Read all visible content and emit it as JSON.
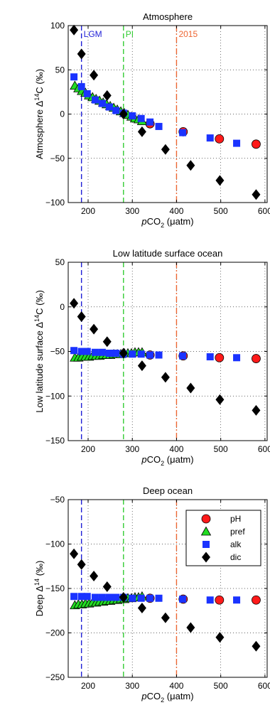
{
  "chart_data": [
    {
      "type": "scatter",
      "title": "Atmosphere",
      "ylabel": {
        "pre": "Atmosphere Δ",
        "sup": "14",
        "post": "C (‰)"
      },
      "xlabel": {
        "italic": "p",
        "main": "CO",
        "sub": "2",
        "post": " (μatm)"
      },
      "xlim": [
        155,
        605
      ],
      "ylim": [
        -100,
        100
      ],
      "xticks": [
        200,
        300,
        400,
        500,
        600
      ],
      "yticks": [
        -100,
        -50,
        0,
        50,
        100
      ],
      "grid": true,
      "reference_lines": [
        {
          "x": 185,
          "label": "LGM",
          "color": "#1f1fd6",
          "style": "dashed"
        },
        {
          "x": 280,
          "label": "PI",
          "color": "#33cc33",
          "style": "dashed"
        },
        {
          "x": 400,
          "label": "2015",
          "color": "#ee6633",
          "style": "dashdot"
        }
      ],
      "series": [
        {
          "name": "pH",
          "x": [
            340,
            415,
            497,
            580
          ],
          "y": [
            -11,
            -20,
            -28,
            -34
          ]
        },
        {
          "name": "pref",
          "x": [
            170,
            178,
            186,
            194,
            202,
            210,
            218,
            226,
            234,
            242,
            250,
            258,
            266,
            274,
            282,
            290,
            298,
            306,
            314,
            322
          ],
          "y": [
            32,
            29,
            26,
            24,
            21,
            19,
            17,
            15,
            13,
            11,
            9,
            7,
            5,
            3,
            1,
            -1,
            -3,
            -5,
            -6,
            -8
          ]
        },
        {
          "name": "alk",
          "x": [
            168,
            185,
            198,
            216,
            232,
            248,
            263,
            280,
            300,
            320,
            340,
            360,
            414,
            476,
            536
          ],
          "y": [
            42,
            31,
            23,
            16,
            12,
            8,
            4,
            1,
            -2,
            -5,
            -9,
            -14,
            -21,
            -27,
            -33
          ]
        },
        {
          "name": "dic",
          "x": [
            168,
            185,
            213,
            243,
            280,
            322,
            375,
            432,
            498,
            580
          ],
          "y": [
            95,
            68,
            44,
            21,
            0,
            -20,
            -40,
            -58,
            -75,
            -91
          ]
        }
      ]
    },
    {
      "type": "scatter",
      "title": "Low latitude surface ocean",
      "ylabel": {
        "pre": "Low latitude surface Δ",
        "sup": "14",
        "post": "C (‰)"
      },
      "xlabel": {
        "italic": "p",
        "main": "CO",
        "sub": "2",
        "post": " (μatm)"
      },
      "xlim": [
        155,
        605
      ],
      "ylim": [
        -150,
        50
      ],
      "xticks": [
        200,
        300,
        400,
        500,
        600
      ],
      "yticks": [
        -150,
        -100,
        -50,
        0,
        50
      ],
      "grid": true,
      "reference_lines": [
        {
          "x": 185,
          "label": "",
          "color": "#1f1fd6",
          "style": "dashed"
        },
        {
          "x": 280,
          "label": "",
          "color": "#33cc33",
          "style": "dashed"
        },
        {
          "x": 400,
          "label": "",
          "color": "#ee6633",
          "style": "dashdot"
        }
      ],
      "series": [
        {
          "name": "pH",
          "x": [
            340,
            415,
            497,
            580
          ],
          "y": [
            -54,
            -55,
            -57,
            -58
          ]
        },
        {
          "name": "pref",
          "x": [
            170,
            178,
            186,
            194,
            202,
            210,
            218,
            226,
            234,
            242,
            250,
            258,
            266,
            274,
            282,
            290,
            298,
            306,
            314,
            322
          ],
          "y": [
            -57,
            -57,
            -56,
            -56,
            -56,
            -55,
            -55,
            -55,
            -54,
            -54,
            -54,
            -53,
            -53,
            -53,
            -52,
            -52,
            -52,
            -51,
            -51,
            -51
          ]
        },
        {
          "name": "alk",
          "x": [
            168,
            185,
            198,
            216,
            232,
            248,
            263,
            280,
            300,
            320,
            340,
            360,
            414,
            476,
            536
          ],
          "y": [
            -49,
            -50,
            -50,
            -51,
            -51,
            -52,
            -52,
            -53,
            -53,
            -53,
            -54,
            -54,
            -55,
            -56,
            -57
          ]
        },
        {
          "name": "dic",
          "x": [
            168,
            185,
            213,
            243,
            280,
            322,
            375,
            432,
            498,
            580
          ],
          "y": [
            4,
            -11,
            -25,
            -39,
            -52,
            -66,
            -79,
            -91,
            -104,
            -116
          ]
        }
      ]
    },
    {
      "type": "scatter",
      "title": "Deep ocean",
      "ylabel": {
        "pre": "Deep Δ",
        "sup": "14",
        "post": " (‰)"
      },
      "xlabel": {
        "italic": "p",
        "main": "CO",
        "sub": "2",
        "post": " (μatm)"
      },
      "xlim": [
        155,
        605
      ],
      "ylim": [
        -250,
        -50
      ],
      "xticks": [
        200,
        300,
        400,
        500,
        600
      ],
      "yticks": [
        -250,
        -200,
        -150,
        -100,
        -50
      ],
      "grid": true,
      "legend": "top-right",
      "reference_lines": [
        {
          "x": 185,
          "label": "",
          "color": "#1f1fd6",
          "style": "dashed"
        },
        {
          "x": 280,
          "label": "",
          "color": "#33cc33",
          "style": "dashed"
        },
        {
          "x": 400,
          "label": "",
          "color": "#ee6633",
          "style": "dashdot"
        }
      ],
      "series": [
        {
          "name": "pH",
          "x": [
            340,
            415,
            497,
            580
          ],
          "y": [
            -161,
            -162,
            -163,
            -163
          ]
        },
        {
          "name": "pref",
          "x": [
            170,
            178,
            186,
            194,
            202,
            210,
            218,
            226,
            234,
            242,
            250,
            258,
            266,
            274,
            282,
            290,
            298,
            306,
            314,
            322
          ],
          "y": [
            -169,
            -168,
            -168,
            -167,
            -167,
            -166,
            -166,
            -165,
            -165,
            -164,
            -164,
            -163,
            -163,
            -162,
            -162,
            -161,
            -161,
            -160,
            -160,
            -159
          ]
        },
        {
          "name": "alk",
          "x": [
            168,
            185,
            198,
            216,
            232,
            248,
            263,
            280,
            300,
            320,
            340,
            360,
            414,
            476,
            536
          ],
          "y": [
            -159,
            -159,
            -159,
            -160,
            -160,
            -160,
            -160,
            -160,
            -161,
            -161,
            -161,
            -161,
            -162,
            -163,
            -163
          ]
        },
        {
          "name": "dic",
          "x": [
            168,
            185,
            213,
            243,
            280,
            322,
            375,
            432,
            498,
            580
          ],
          "y": [
            -111,
            -123,
            -136,
            -148,
            -160,
            -172,
            -183,
            -194,
            -205,
            -215
          ]
        }
      ]
    }
  ],
  "styles": {
    "pH": {
      "marker": "circle",
      "fill": "#ff1a1a"
    },
    "pref": {
      "marker": "triangle",
      "fill": "#22dd22"
    },
    "alk": {
      "marker": "square",
      "fill": "#1a33ff"
    },
    "dic": {
      "marker": "diamond",
      "fill": "#000000"
    }
  }
}
